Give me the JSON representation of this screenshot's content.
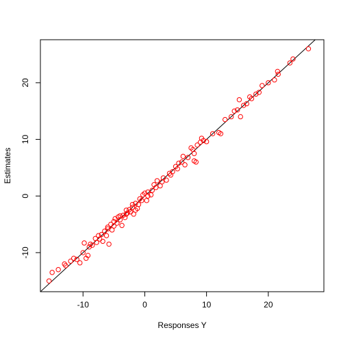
{
  "chart_data": {
    "type": "scatter",
    "xlabel": "Responses Y",
    "ylabel": "Estimates",
    "color": "#ff0000",
    "xlim": [
      -16.9,
      29.0
    ],
    "ylim": [
      -16.9,
      27.6
    ],
    "xticks": [
      -10,
      0,
      10,
      20
    ],
    "yticks": [
      -10,
      0,
      10,
      20
    ],
    "reference_line": {
      "intercept": 0,
      "slope": 1
    },
    "x": [
      -15.5,
      -15,
      -14,
      -13,
      -12.8,
      -12,
      -11.5,
      -11,
      -10.5,
      -10,
      -9.8,
      -9.5,
      -9.2,
      -9,
      -8.8,
      -8.5,
      -8,
      -7.8,
      -7.5,
      -7.3,
      -7,
      -6.8,
      -6.5,
      -6.2,
      -6,
      -5.8,
      -5.5,
      -5.3,
      -5,
      -4.8,
      -4.5,
      -4.3,
      -4,
      -3.7,
      -3.5,
      -3.2,
      -3,
      -2.8,
      -2.5,
      -2.3,
      -2,
      -1.8,
      -1.5,
      -1.2,
      -1,
      -0.8,
      -0.5,
      -0.3,
      0,
      0.3,
      0.5,
      1,
      1.5,
      1.8,
      2,
      2.5,
      3,
      3.5,
      4,
      4.5,
      5,
      5.3,
      6,
      6.5,
      7,
      7.5,
      8,
      8,
      8.3,
      8.5,
      9,
      9.2,
      9.5,
      10,
      11,
      12,
      12.3,
      13,
      14,
      14.5,
      15,
      15.3,
      15.5,
      16,
      16.5,
      17,
      17.3,
      18,
      18.5,
      19,
      20,
      21,
      21.5,
      21.6,
      23.5,
      24,
      26.5,
      -6,
      -5,
      -4,
      -3,
      -2,
      -1.5,
      0.5,
      1.2,
      2.8,
      4.2,
      5.5,
      6.2,
      7.8
    ],
    "values": [
      -15,
      -13.5,
      -13,
      -12,
      -12.3,
      -11.5,
      -11,
      -11.2,
      -11.8,
      -10,
      -8.3,
      -11,
      -10.5,
      -9,
      -8.5,
      -8.7,
      -7.5,
      -8.2,
      -7,
      -7.6,
      -6.8,
      -8,
      -6.2,
      -7,
      -5.5,
      -8.5,
      -5,
      -6,
      -5.3,
      -4,
      -4.8,
      -3.7,
      -4.2,
      -5.2,
      -3.4,
      -3.8,
      -2.5,
      -3,
      -2.4,
      -2.8,
      -2,
      -3.2,
      -1.3,
      -2.2,
      -1.5,
      -0.5,
      -0.8,
      0.2,
      0.5,
      -0.8,
      0.7,
      0.2,
      2,
      1.5,
      2.7,
      1.8,
      3.2,
      2.8,
      4,
      4.3,
      5.2,
      4.8,
      6,
      5.5,
      6.8,
      8.5,
      7.5,
      6.2,
      6,
      9,
      9.5,
      10.2,
      9.8,
      9.6,
      11,
      11.2,
      11,
      13.5,
      14,
      15,
      15.2,
      17,
      14,
      16,
      16.3,
      17.5,
      17.2,
      18,
      18.3,
      19.5,
      20,
      20.5,
      22,
      21.5,
      23.5,
      24.2,
      26,
      -5.8,
      -4.5,
      -3.5,
      -3.2,
      -1.5,
      -2.5,
      0,
      1,
      2.5,
      3.7,
      5.8,
      7,
      8.2
    ]
  }
}
